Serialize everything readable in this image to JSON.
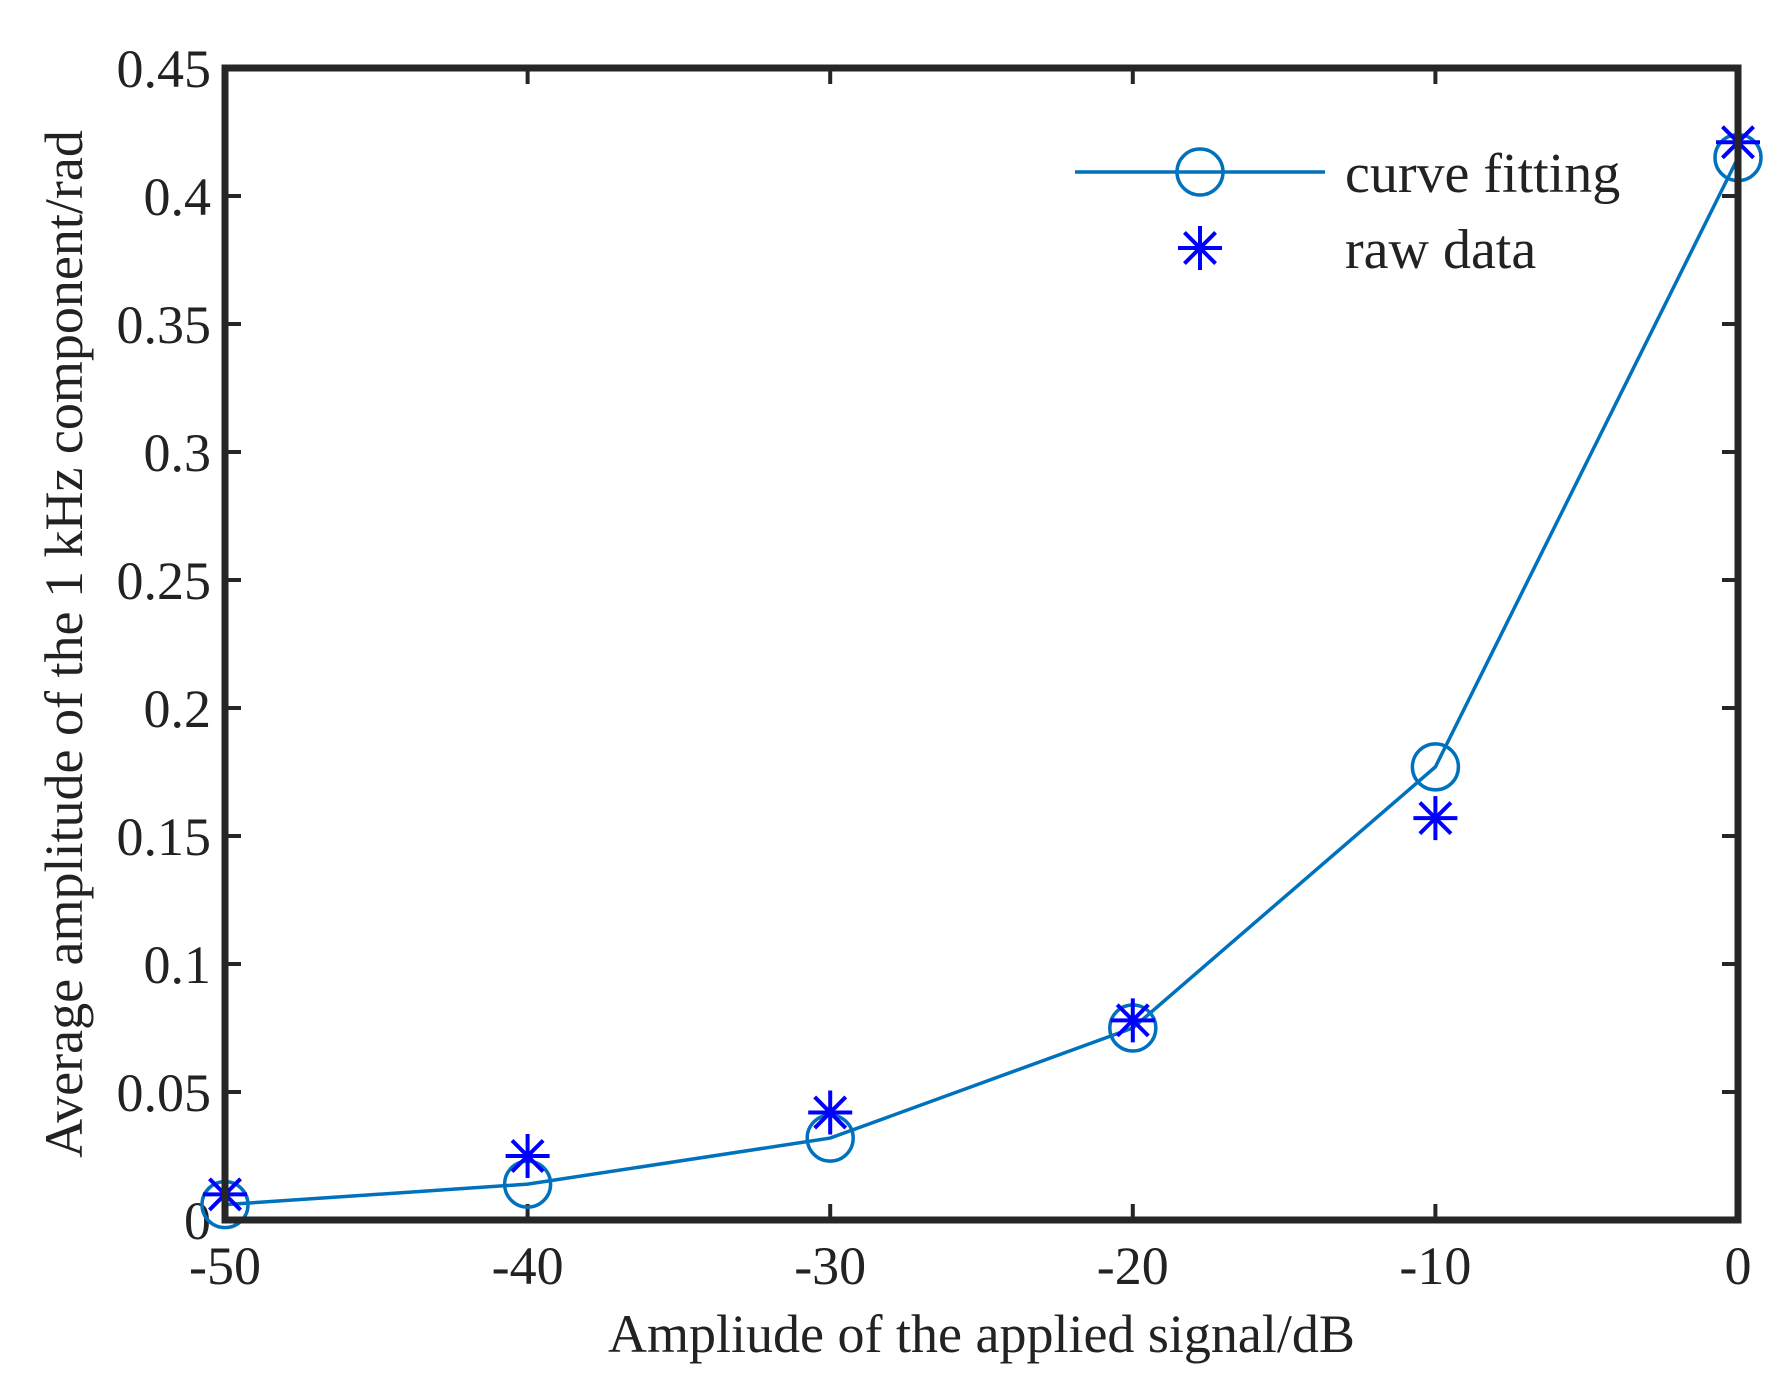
{
  "chart_data": {
    "type": "line",
    "title": "",
    "xlabel": "Ampliude of the applied signal/dB",
    "ylabel": "Average amplitude of the 1 kHz component/rad",
    "xlim": [
      -50,
      0
    ],
    "ylim": [
      0,
      0.45
    ],
    "grid": false,
    "legend_position": "top-right",
    "x_ticks": [
      -50,
      -40,
      -30,
      -20,
      -10,
      0
    ],
    "x_tick_labels": [
      "-50",
      "-40",
      "-30",
      "-20",
      "-10",
      "0"
    ],
    "y_ticks": [
      0,
      0.05,
      0.1,
      0.15,
      0.2,
      0.25,
      0.3,
      0.35,
      0.4,
      0.45
    ],
    "y_tick_labels": [
      "0",
      "0.05",
      "0.1",
      "0.15",
      "0.2",
      "0.25",
      "0.3",
      "0.35",
      "0.4",
      "0.45"
    ],
    "series": [
      {
        "name": "curve fitting",
        "style": "line-circle",
        "color": "#0072BD",
        "x": [
          -50,
          -40,
          -30,
          -20,
          -10,
          0
        ],
        "y": [
          0.006,
          0.014,
          0.032,
          0.075,
          0.177,
          0.415
        ]
      },
      {
        "name": "raw data",
        "style": "asterisk",
        "color": "#0000FF",
        "x": [
          -50,
          -40,
          -30,
          -20,
          -10,
          0
        ],
        "y": [
          0.01,
          0.025,
          0.042,
          0.078,
          0.157,
          0.421
        ]
      }
    ]
  }
}
